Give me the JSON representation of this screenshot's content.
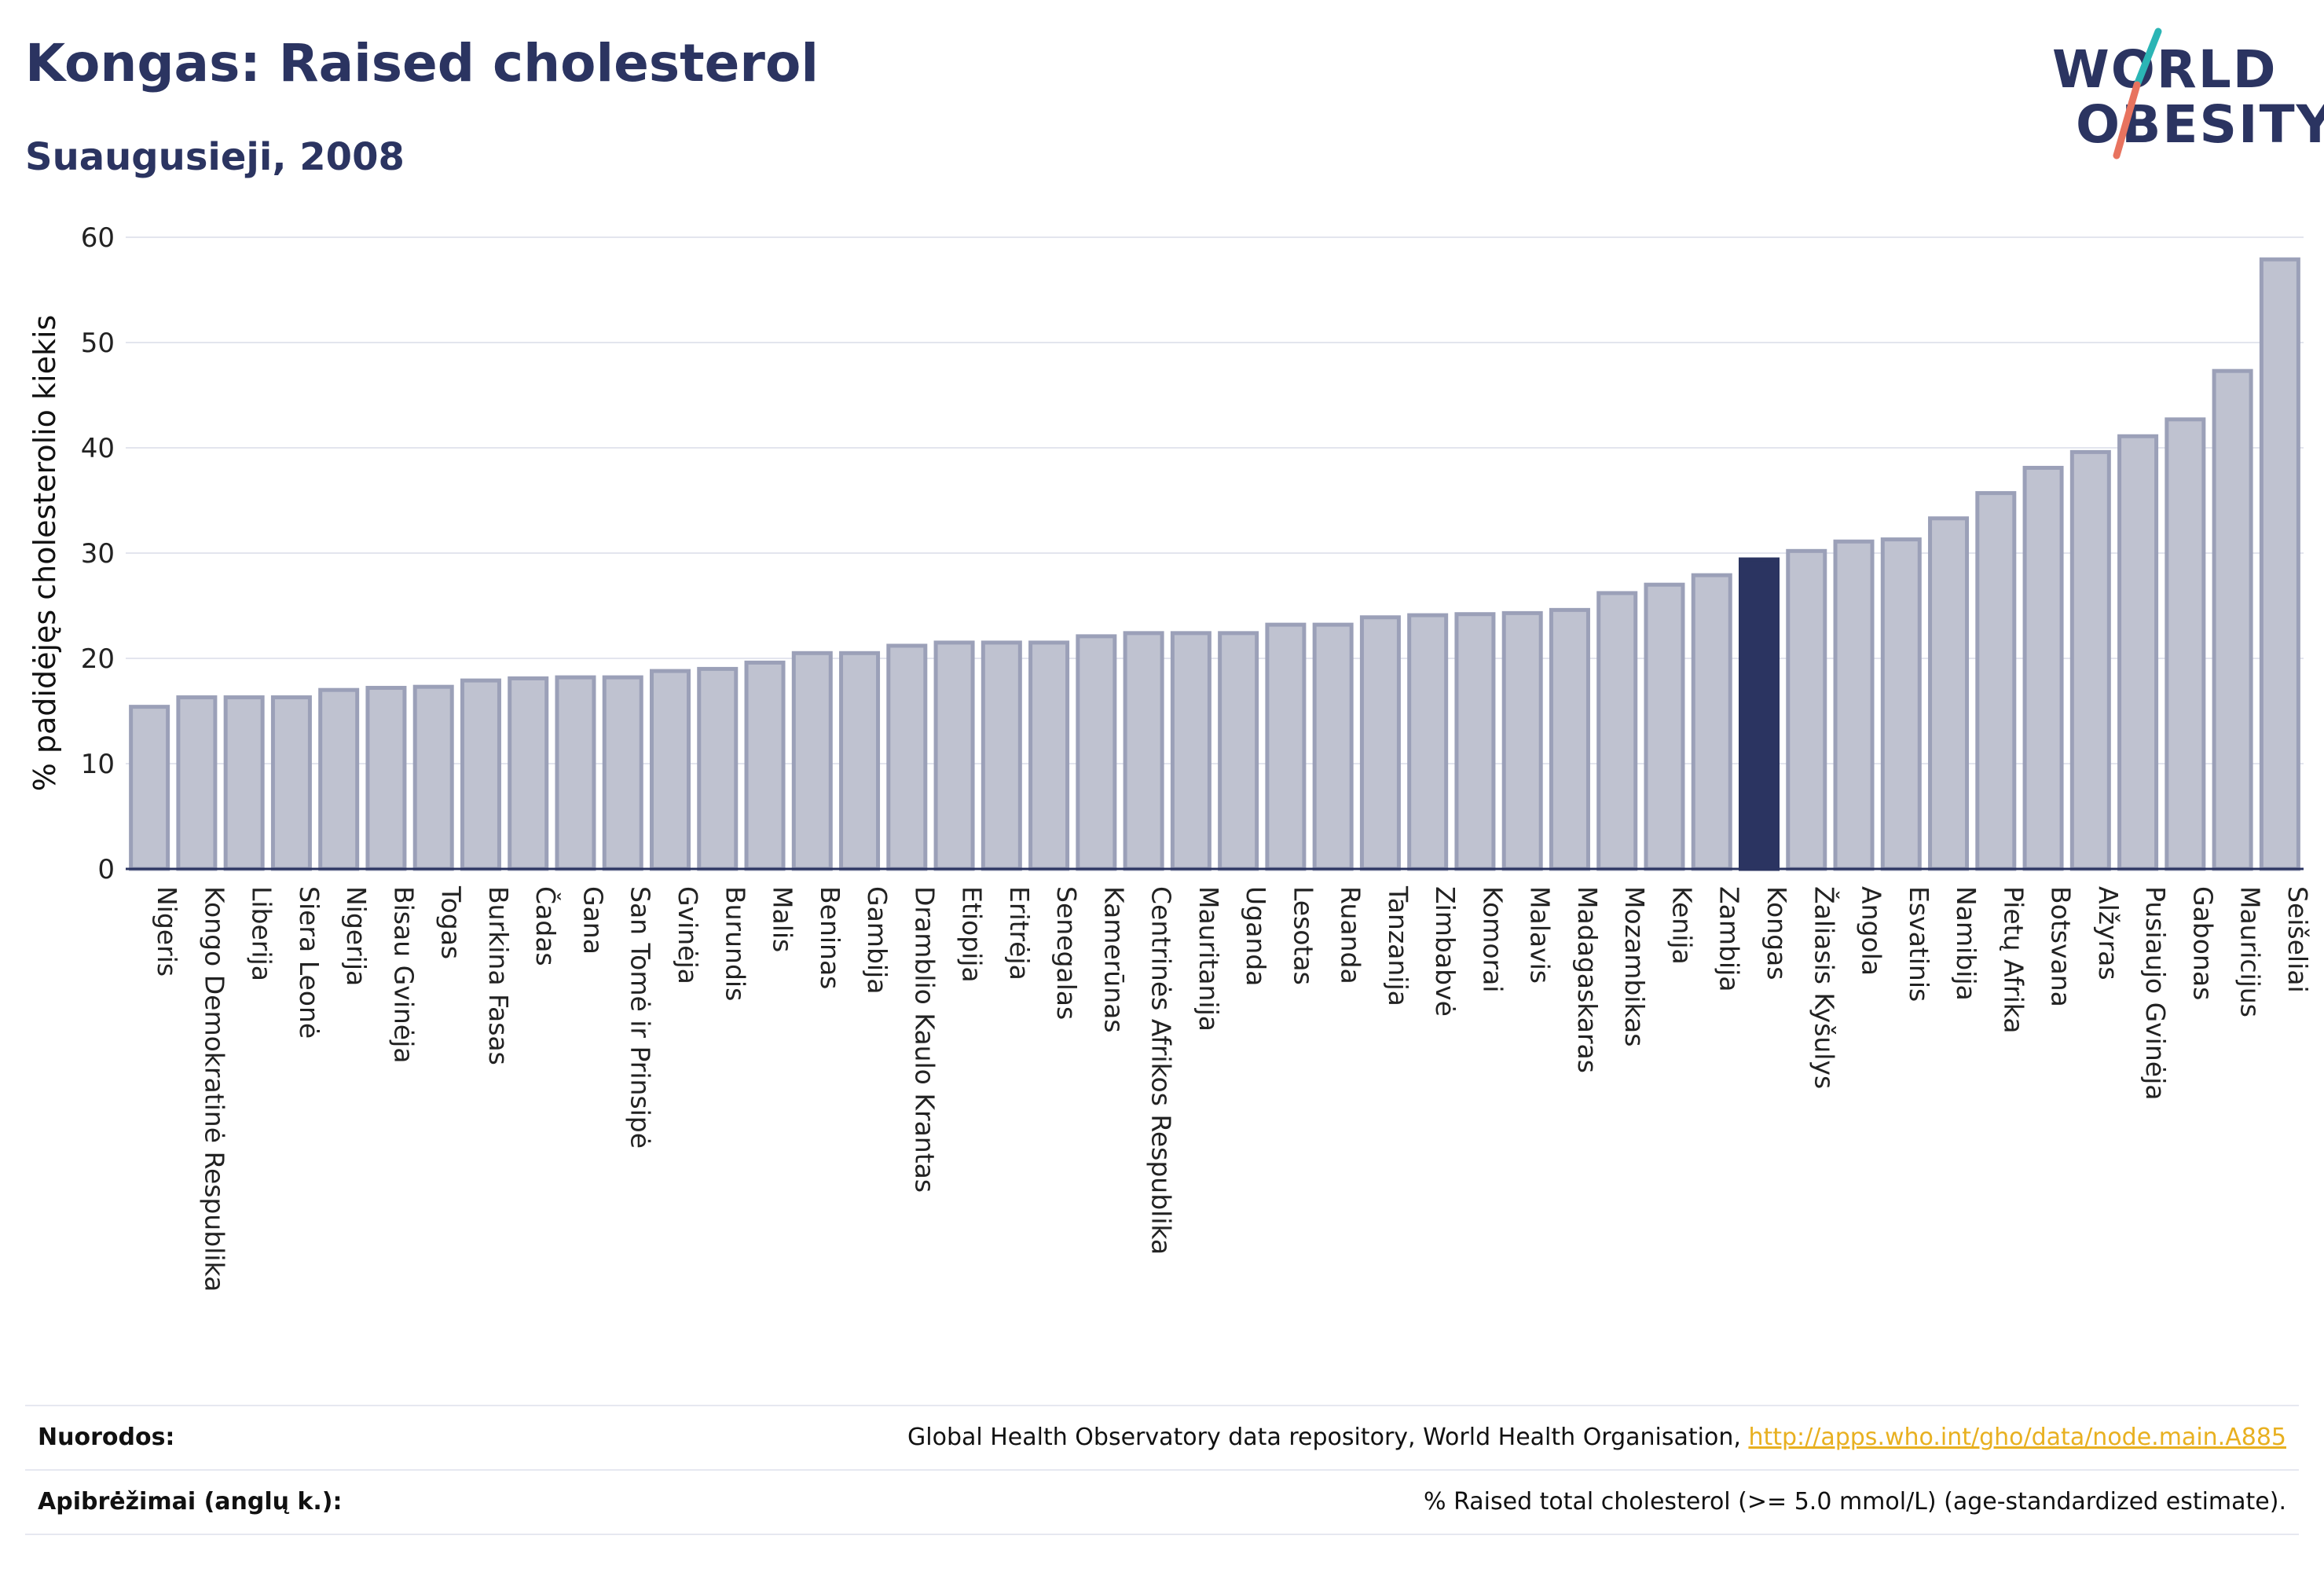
{
  "header": {
    "title": "Kongas: Raised cholesterol",
    "subtitle": "Suaugusieji, 2008"
  },
  "logo": {
    "line1": "WORLD",
    "line2": "OBESITY"
  },
  "colors": {
    "bar": "#bfc2d0",
    "bar_border": "#9ba0b8",
    "highlight": "#2b3461",
    "grid": "#e3e5ee",
    "baseline": "#2b3461",
    "logo_slash_teal": "#2bb5b5",
    "logo_slash_coral": "#e8735f"
  },
  "chart_data": {
    "type": "bar",
    "ylabel": "% padidėjęs cholesterolio kiekis",
    "ylim": [
      0,
      60
    ],
    "yticks": [
      0,
      10,
      20,
      30,
      40,
      50,
      60
    ],
    "grid": true,
    "highlight": "Kongas",
    "categories": [
      "Nigeris",
      "Kongo Demokratinė Respublika",
      "Liberija",
      "Siera Leonė",
      "Nigerija",
      "Bisau Gvinėja",
      "Togas",
      "Burkina Fasas",
      "Čadas",
      "Gana",
      "San Tomė ir Prinsipė",
      "Gvinėja",
      "Burundis",
      "Malis",
      "Beninas",
      "Gambija",
      "Dramblio Kaulo Krantas",
      "Etiopija",
      "Eritrėja",
      "Senegalas",
      "Kamerūnas",
      "Centrinės Afrikos Respublika",
      "Mauritanija",
      "Uganda",
      "Lesotas",
      "Ruanda",
      "Tanzanija",
      "Zimbabvė",
      "Komorai",
      "Malavis",
      "Madagaskaras",
      "Mozambikas",
      "Kenija",
      "Zambija",
      "Kongas",
      "Žaliasis Kyšulys",
      "Angola",
      "Esvatinis",
      "Namibija",
      "Pietų Afrika",
      "Botsvana",
      "Alžyras",
      "Pusiaujo Gvinėja",
      "Gabonas",
      "Mauricijus",
      "Seišeliai"
    ],
    "values": [
      15.4,
      16.3,
      16.3,
      16.3,
      17.0,
      17.2,
      17.3,
      17.9,
      18.1,
      18.2,
      18.2,
      18.8,
      19.0,
      19.6,
      20.5,
      20.5,
      21.2,
      21.5,
      21.5,
      21.5,
      22.1,
      22.4,
      22.4,
      22.4,
      23.2,
      23.2,
      23.9,
      24.1,
      24.2,
      24.3,
      24.6,
      26.2,
      27.0,
      27.9,
      29.4,
      30.2,
      31.1,
      31.3,
      33.3,
      35.7,
      38.1,
      39.6,
      41.1,
      42.7,
      47.3,
      57.9
    ]
  },
  "footer": {
    "sources_label": "Nuorodos:",
    "sources_text": "Global Health Observatory data repository, World Health Organisation, ",
    "sources_link": "http://apps.who.int/gho/data/node.main.A885",
    "definitions_label": "Apibrėžimai (anglų k.):",
    "definitions_text": "% Raised total cholesterol (>= 5.0 mmol/L) (age-standardized estimate)."
  }
}
